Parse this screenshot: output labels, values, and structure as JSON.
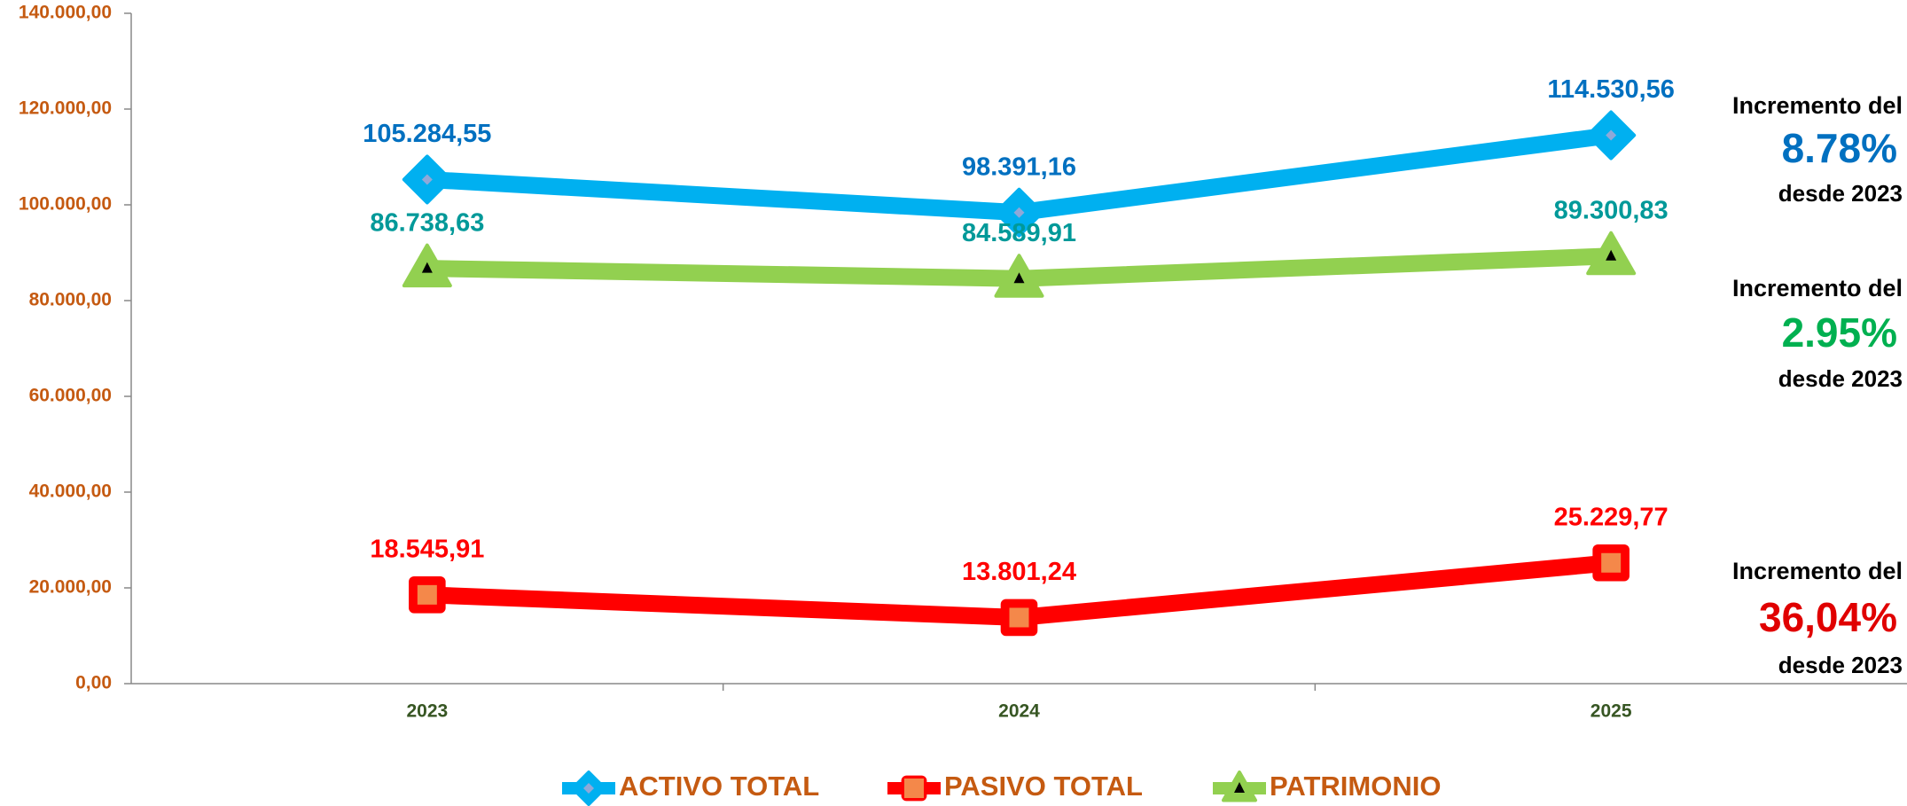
{
  "chart_data": {
    "type": "line",
    "categories": [
      "2023",
      "2024",
      "2025"
    ],
    "series": [
      {
        "name": "ACTIVO TOTAL",
        "color": "#00b0f0",
        "label_color": "#0070c0",
        "marker": "diamond",
        "values": [
          105284.55,
          98391.16,
          114530.56
        ],
        "value_labels": [
          "105.284,55",
          "98.391,16",
          "114.530,56"
        ]
      },
      {
        "name": "PASIVO TOTAL",
        "color": "#ff0000",
        "label_color": "#ff0000",
        "marker": "square",
        "values": [
          18545.91,
          13801.24,
          25229.77
        ],
        "value_labels": [
          "18.545,91",
          "13.801,24",
          "25.229,77"
        ]
      },
      {
        "name": "PATRIMONIO",
        "color": "#92d050",
        "label_color": "#009999",
        "marker": "triangle",
        "values": [
          86738.63,
          84589.91,
          89300.83
        ],
        "value_labels": [
          "86.738,63",
          "84.589,91",
          "89.300,83"
        ]
      }
    ],
    "ylim": [
      0,
      140000
    ],
    "yticks": [
      {
        "value": 0,
        "label": "0,00"
      },
      {
        "value": 20000,
        "label": "20.000,00"
      },
      {
        "value": 40000,
        "label": "40.000,00"
      },
      {
        "value": 60000,
        "label": "60.000,00"
      },
      {
        "value": 80000,
        "label": "80.000,00"
      },
      {
        "value": 100000,
        "label": "100.000,00"
      },
      {
        "value": 120000,
        "label": "120.000,00"
      },
      {
        "value": 140000,
        "label": "140.000,00"
      }
    ],
    "legend": "bottom",
    "annotations": [
      {
        "label": "Incremento del",
        "value": "8.78%",
        "note": "desde 2023",
        "color": "#0070c0"
      },
      {
        "label": "Incremento del",
        "value": "2.95%",
        "note": "desde 2023",
        "color": "#00b050"
      },
      {
        "label": "Incremento del",
        "value": "36,04%",
        "note": "desde 2023",
        "color": "#e00000"
      }
    ]
  }
}
